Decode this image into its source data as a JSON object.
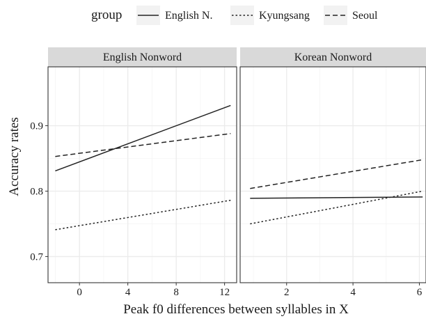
{
  "chart_data": {
    "type": "line",
    "ylabel": "Accuracy rates",
    "xlabel": "Peak f0 differences between syllables in X",
    "legend": {
      "title": "group",
      "position": "top",
      "entries": [
        {
          "name": "English N.",
          "linetype": "solid"
        },
        {
          "name": "Kyungsang",
          "linetype": "dotted"
        },
        {
          "name": "Seoul",
          "linetype": "dashed"
        }
      ]
    },
    "grid": true,
    "ylim": [
      0.66,
      0.99
    ],
    "yticks": [
      0.7,
      0.8,
      0.9
    ],
    "ytick_labels": [
      "0.7",
      "0.8",
      "0.9"
    ],
    "colors": {
      "line": "#222222",
      "strip": "#d9d9d9",
      "grid": "#ebebeb",
      "panel_border": "#333333"
    },
    "panels": [
      {
        "title": "English Nonword",
        "xlim": [
          -2.6,
          13.0
        ],
        "xticks": [
          0,
          4,
          8,
          12
        ],
        "xtick_labels": [
          "0",
          "4",
          "8",
          "12"
        ],
        "series": [
          {
            "name": "English N.",
            "linetype": "solid",
            "x": [
              -2.0,
              12.5
            ],
            "y": [
              0.831,
              0.931
            ]
          },
          {
            "name": "Kyungsang",
            "linetype": "dotted",
            "x": [
              -2.0,
              12.5
            ],
            "y": [
              0.741,
              0.786
            ]
          },
          {
            "name": "Seoul",
            "linetype": "dashed",
            "x": [
              -2.0,
              12.5
            ],
            "y": [
              0.853,
              0.888
            ]
          }
        ]
      },
      {
        "title": "Korean Nonword",
        "xlim": [
          0.6,
          6.2
        ],
        "xticks": [
          2,
          4,
          6
        ],
        "xtick_labels": [
          "2",
          "4",
          "6"
        ],
        "series": [
          {
            "name": "English N.",
            "linetype": "solid",
            "x": [
              0.9,
              6.1
            ],
            "y": [
              0.789,
              0.791
            ]
          },
          {
            "name": "Kyungsang",
            "linetype": "dotted",
            "x": [
              0.9,
              6.1
            ],
            "y": [
              0.75,
              0.8
            ]
          },
          {
            "name": "Seoul",
            "linetype": "dashed",
            "x": [
              0.9,
              6.1
            ],
            "y": [
              0.804,
              0.848
            ]
          }
        ]
      }
    ]
  }
}
